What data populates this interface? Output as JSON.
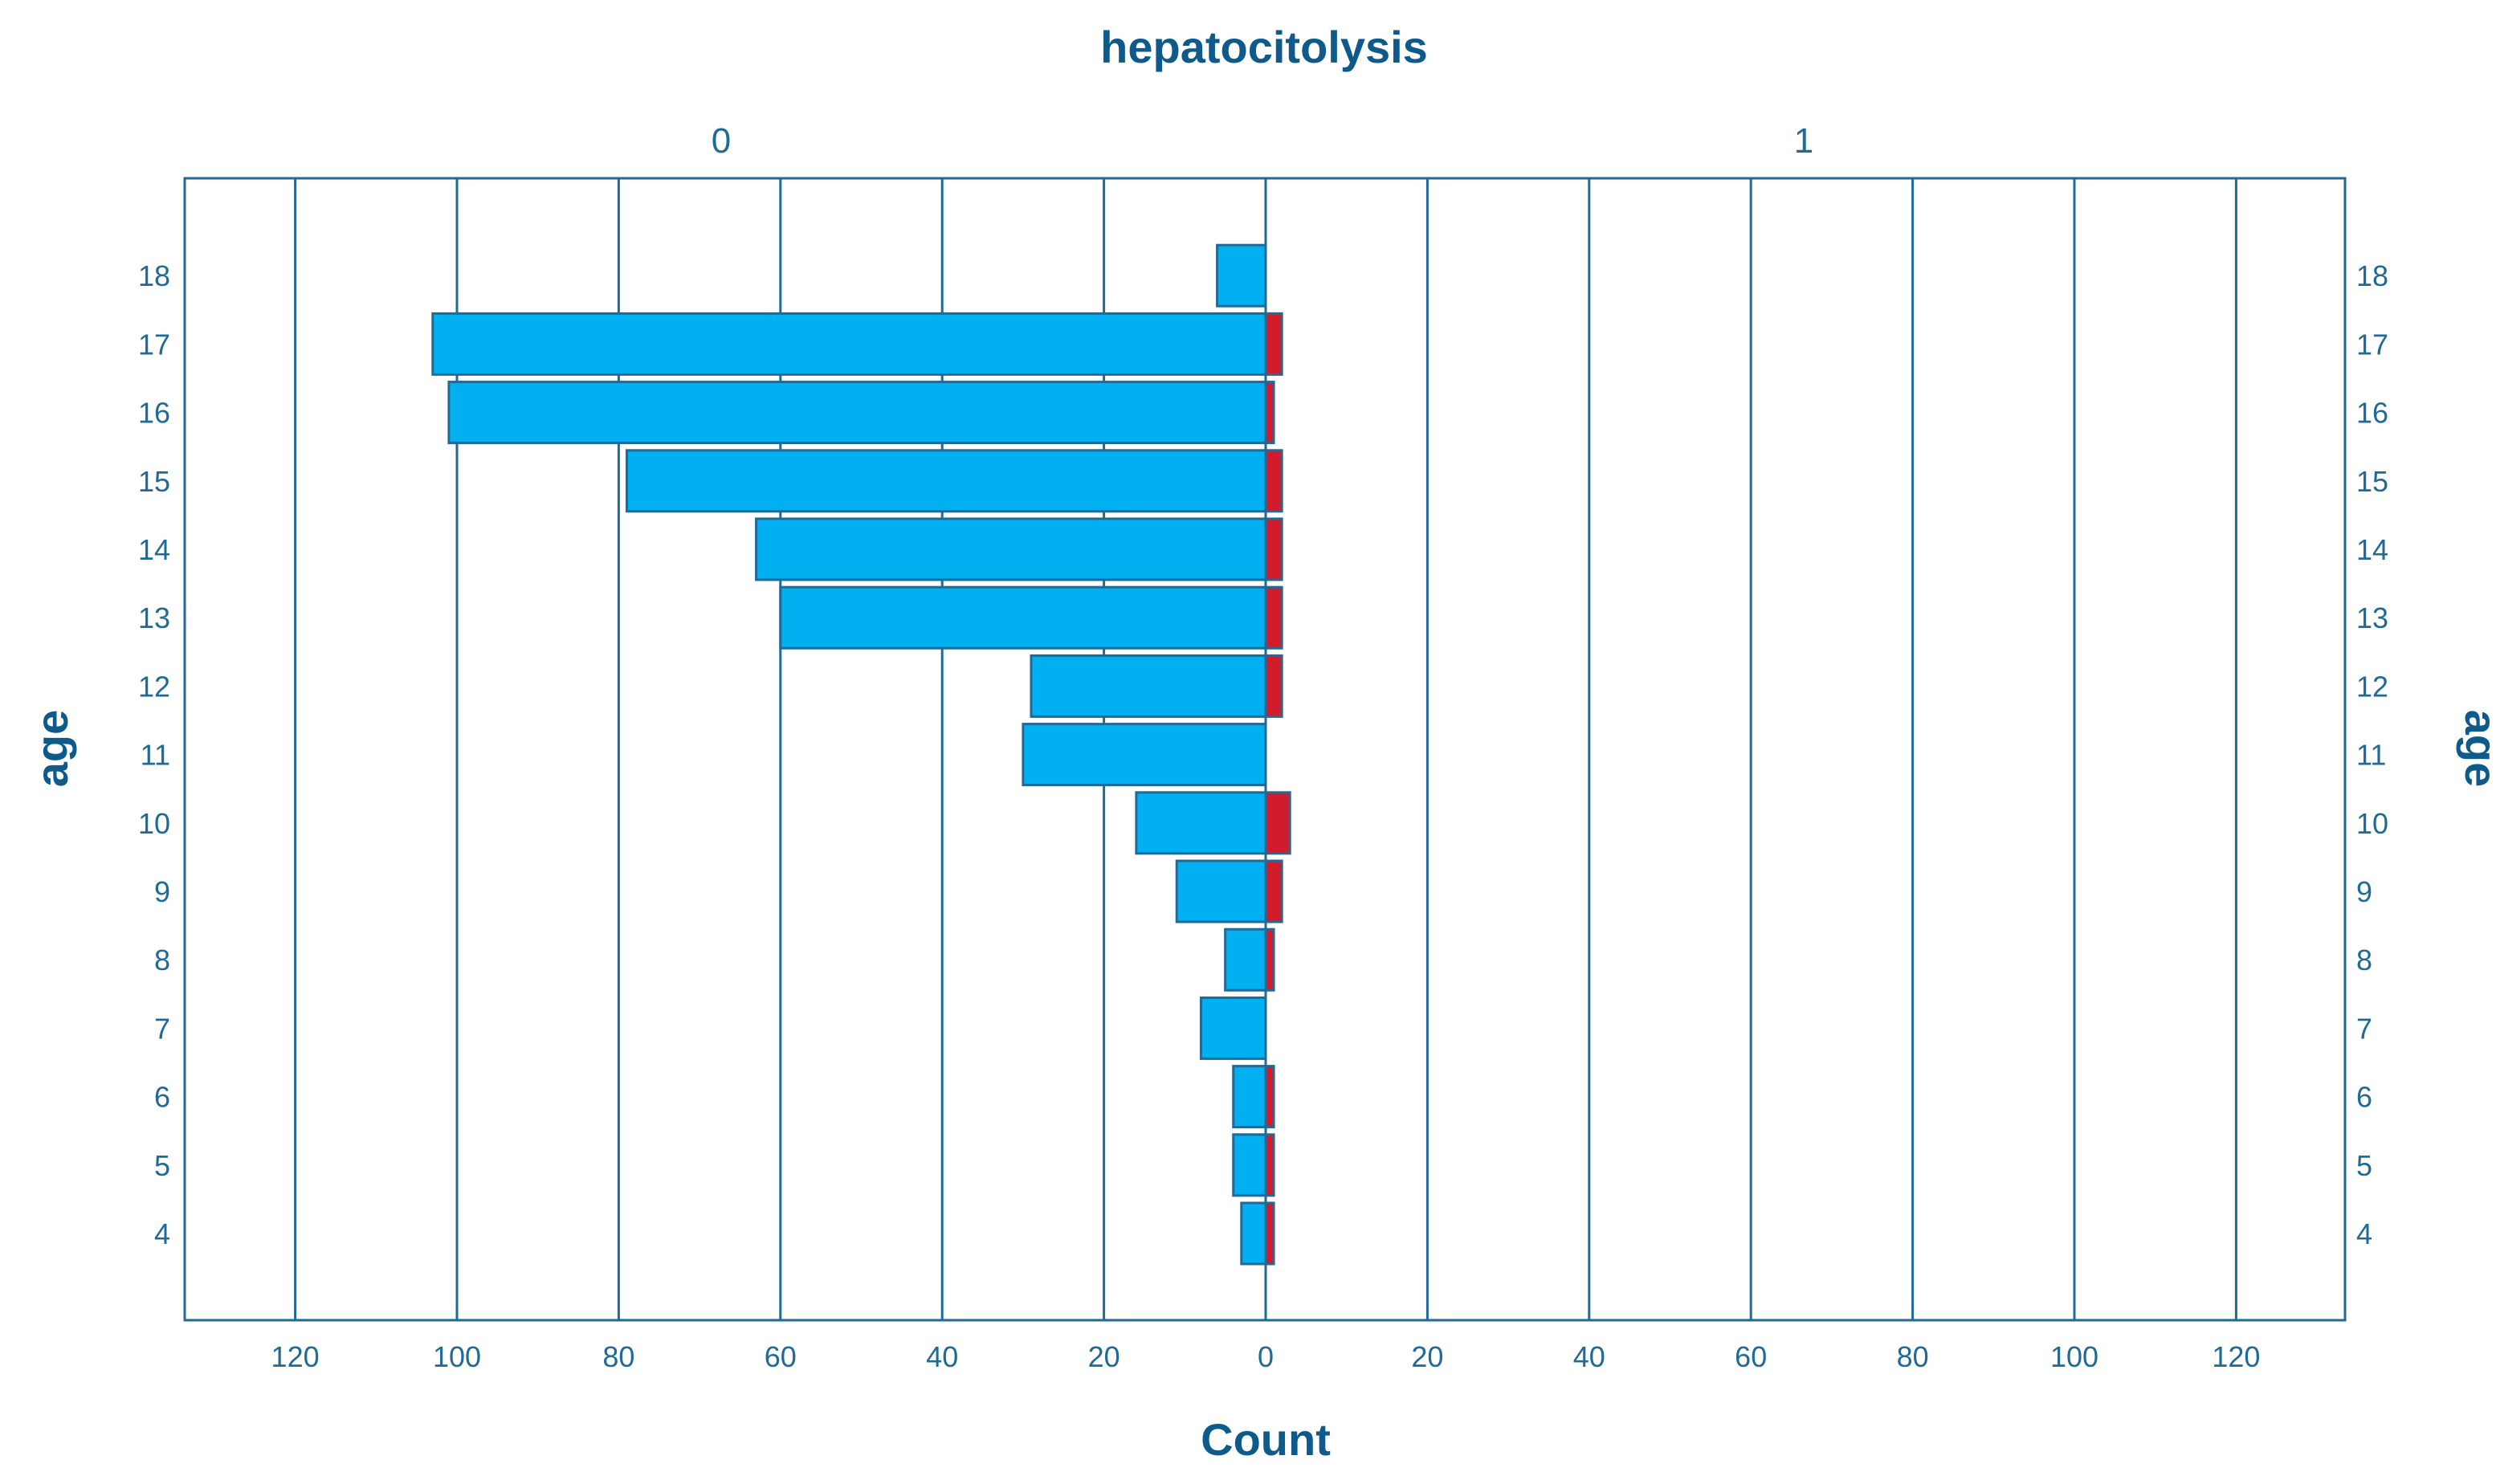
{
  "chart_data": {
    "type": "bar",
    "orientation": "horizontal",
    "layout": "population-pyramid",
    "title": "hepatocitolysis",
    "panel_labels": [
      "0",
      "1"
    ],
    "xlabel": "Count",
    "ylabel": "age",
    "categories": [
      "4",
      "5",
      "6",
      "7",
      "8",
      "9",
      "10",
      "11",
      "12",
      "13",
      "14",
      "15",
      "16",
      "17",
      "18"
    ],
    "series": [
      {
        "name": "0",
        "color": "#00b0f0",
        "values": [
          3,
          4,
          4,
          8,
          5,
          11,
          16,
          30,
          29,
          60,
          63,
          79,
          101,
          103,
          6
        ]
      },
      {
        "name": "1",
        "color": "#d01c2b",
        "values": [
          1,
          1,
          1,
          0,
          1,
          2,
          3,
          0,
          2,
          2,
          2,
          2,
          1,
          2,
          0
        ]
      }
    ],
    "xlim": [
      0,
      133
    ],
    "xticks": [
      "0",
      "20",
      "40",
      "60",
      "80",
      "100",
      "120"
    ],
    "grid": true,
    "legend": "none",
    "colors": {
      "axis": "#1f6a96",
      "text": "#1f6a96",
      "title": "#0e5a8a",
      "bar_stroke": "#1f6a96"
    }
  }
}
